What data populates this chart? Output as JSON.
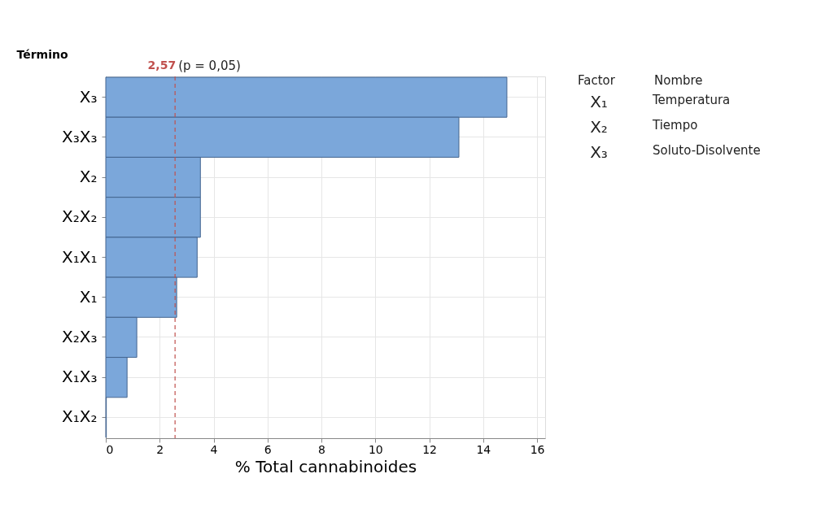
{
  "chart_data": {
    "type": "bar",
    "orientation": "horizontal",
    "ylabel": "Término",
    "xlabel": "% Total cannabinoides",
    "categories": [
      "X₃",
      "X₃X₃",
      "X₂",
      "X₂X₂",
      "X₁X₁",
      "X₁",
      "X₂X₃",
      "X₁X₃",
      "X₁X₂"
    ],
    "values": [
      14.88,
      13.1,
      3.51,
      3.51,
      3.39,
      2.63,
      1.15,
      0.79,
      0.02
    ],
    "color": "#7ba7da",
    "xlim": [
      0,
      16.3
    ],
    "xticks": [
      0,
      2,
      4,
      6,
      8,
      10,
      12,
      14,
      16
    ],
    "grid": true,
    "ref_lines": [
      {
        "axis": "x",
        "value": 2.57,
        "label": "2,57",
        "color": "#c0504d",
        "line_style": "dashed"
      }
    ],
    "annotations": [
      "(p = 0,05)",
      "Factor",
      "Nombre",
      "X₁",
      "Temperatura",
      "X₂",
      "Tiempo",
      "X₃",
      "Soluto-Disolvente"
    ]
  }
}
